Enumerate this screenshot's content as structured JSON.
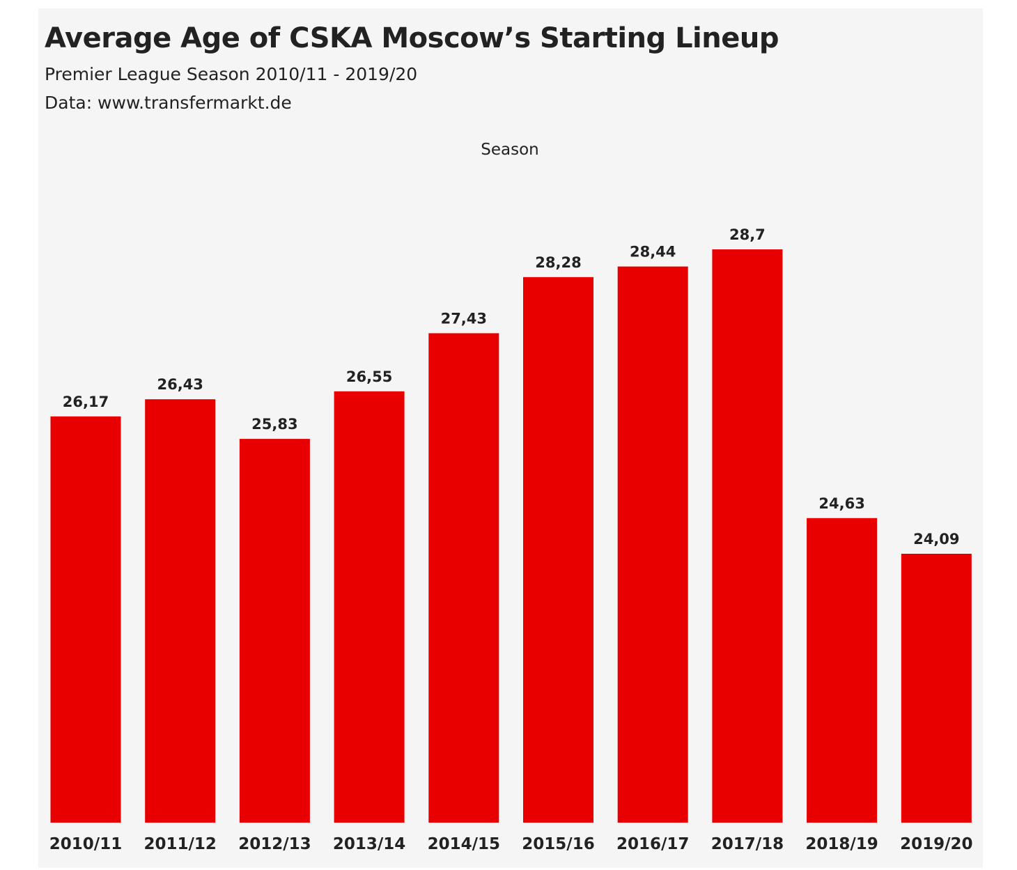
{
  "chart_data": {
    "type": "bar",
    "title": "Average Age of CSKA Moscow’s Starting Lineup",
    "subtitle": "Premier League Season 2010/11 - 2019/20",
    "source": "Data: www.transfermarkt.de",
    "xlabel": "Season",
    "ylabel": "",
    "categories": [
      "2010/11",
      "2011/12",
      "2012/13",
      "2013/14",
      "2014/15",
      "2015/16",
      "2016/17",
      "2017/18",
      "2018/19",
      "2019/20"
    ],
    "values": [
      26.17,
      26.43,
      25.83,
      26.55,
      27.43,
      28.28,
      28.44,
      28.7,
      24.63,
      24.09
    ],
    "value_labels": [
      "26,17",
      "26,43",
      "25,83",
      "26,55",
      "27,43",
      "28,28",
      "28,44",
      "28,7",
      "24,63",
      "24,09"
    ],
    "bar_color": "#e80000",
    "background_color": "#f5f5f5",
    "grid": false,
    "legend": "none",
    "y_axis_visible": false
  }
}
